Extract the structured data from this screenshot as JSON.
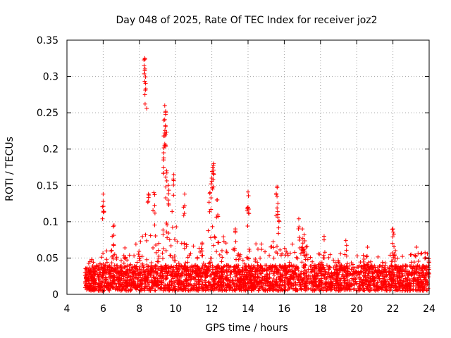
{
  "chart_data": {
    "type": "scatter",
    "title": "Day 048 of 2025, Rate Of TEC Index for receiver joz2",
    "xlabel": "GPS time / hours",
    "ylabel": "ROTI / TECUs",
    "xlim": [
      4,
      24
    ],
    "ylim": [
      0,
      0.35
    ],
    "xticks": [
      4,
      6,
      8,
      10,
      12,
      14,
      16,
      18,
      20,
      22,
      24
    ],
    "yticks": [
      0,
      0.05,
      0.1,
      0.15,
      0.2,
      0.25,
      0.3,
      0.35
    ],
    "xtick_labels": [
      "4",
      "6",
      "8",
      "10",
      "12",
      "14",
      "16",
      "18",
      "20",
      "22",
      "24"
    ],
    "ytick_labels": [
      "0",
      "0.05",
      "0.1",
      "0.15",
      "0.2",
      "0.25",
      "0.3",
      "0.35"
    ],
    "grid": true,
    "marker": "+",
    "series": [
      {
        "name": "ROTI",
        "color": "#ff0000",
        "x_range": [
          5.0,
          24.0
        ],
        "baseline_band": [
          0.005,
          0.04
        ],
        "envelope": [
          [
            5.0,
            0.045
          ],
          [
            5.5,
            0.05
          ],
          [
            6.0,
            0.06
          ],
          [
            6.5,
            0.06
          ],
          [
            7.0,
            0.055
          ],
          [
            7.5,
            0.06
          ],
          [
            8.0,
            0.08
          ],
          [
            8.5,
            0.1
          ],
          [
            9.0,
            0.12
          ],
          [
            9.5,
            0.14
          ],
          [
            10.0,
            0.1
          ],
          [
            10.5,
            0.07
          ],
          [
            11.0,
            0.07
          ],
          [
            11.5,
            0.075
          ],
          [
            12.0,
            0.1
          ],
          [
            12.5,
            0.09
          ],
          [
            13.0,
            0.07
          ],
          [
            13.5,
            0.065
          ],
          [
            14.0,
            0.07
          ],
          [
            14.5,
            0.07
          ],
          [
            15.0,
            0.07
          ],
          [
            15.5,
            0.075
          ],
          [
            16.0,
            0.07
          ],
          [
            16.5,
            0.07
          ],
          [
            17.0,
            0.075
          ],
          [
            17.5,
            0.06
          ],
          [
            18.0,
            0.06
          ],
          [
            18.5,
            0.055
          ],
          [
            19.0,
            0.055
          ],
          [
            19.5,
            0.06
          ],
          [
            20.0,
            0.055
          ],
          [
            20.5,
            0.055
          ],
          [
            21.0,
            0.055
          ],
          [
            21.5,
            0.05
          ],
          [
            22.0,
            0.065
          ],
          [
            22.5,
            0.055
          ],
          [
            23.0,
            0.055
          ],
          [
            23.5,
            0.06
          ],
          [
            24.0,
            0.06
          ]
        ],
        "peaks": [
          {
            "x": 8.3,
            "y": 0.325
          },
          {
            "x": 8.3,
            "y": 0.308
          },
          {
            "x": 8.35,
            "y": 0.283
          },
          {
            "x": 9.4,
            "y": 0.26
          },
          {
            "x": 9.45,
            "y": 0.252
          },
          {
            "x": 9.4,
            "y": 0.222
          },
          {
            "x": 9.4,
            "y": 0.207
          },
          {
            "x": 9.35,
            "y": 0.188
          },
          {
            "x": 9.5,
            "y": 0.17
          },
          {
            "x": 9.9,
            "y": 0.165
          },
          {
            "x": 9.6,
            "y": 0.15
          },
          {
            "x": 6.0,
            "y": 0.138
          },
          {
            "x": 6.0,
            "y": 0.128
          },
          {
            "x": 8.5,
            "y": 0.138
          },
          {
            "x": 8.8,
            "y": 0.14
          },
          {
            "x": 12.1,
            "y": 0.18
          },
          {
            "x": 12.05,
            "y": 0.175
          },
          {
            "x": 12.0,
            "y": 0.16
          },
          {
            "x": 11.9,
            "y": 0.14
          },
          {
            "x": 12.3,
            "y": 0.13
          },
          {
            "x": 10.5,
            "y": 0.138
          },
          {
            "x": 14.0,
            "y": 0.141
          },
          {
            "x": 14.0,
            "y": 0.12
          },
          {
            "x": 15.6,
            "y": 0.148
          },
          {
            "x": 15.6,
            "y": 0.135
          },
          {
            "x": 15.65,
            "y": 0.11
          },
          {
            "x": 16.8,
            "y": 0.104
          },
          {
            "x": 6.6,
            "y": 0.095
          },
          {
            "x": 6.5,
            "y": 0.08
          },
          {
            "x": 22.0,
            "y": 0.09
          },
          {
            "x": 22.05,
            "y": 0.083
          },
          {
            "x": 18.2,
            "y": 0.08
          },
          {
            "x": 19.4,
            "y": 0.074
          },
          {
            "x": 7.2,
            "y": 0.064
          },
          {
            "x": 20.6,
            "y": 0.065
          },
          {
            "x": 23.3,
            "y": 0.065
          },
          {
            "x": 17.0,
            "y": 0.09
          },
          {
            "x": 17.1,
            "y": 0.082
          },
          {
            "x": 13.3,
            "y": 0.09
          }
        ]
      }
    ]
  }
}
